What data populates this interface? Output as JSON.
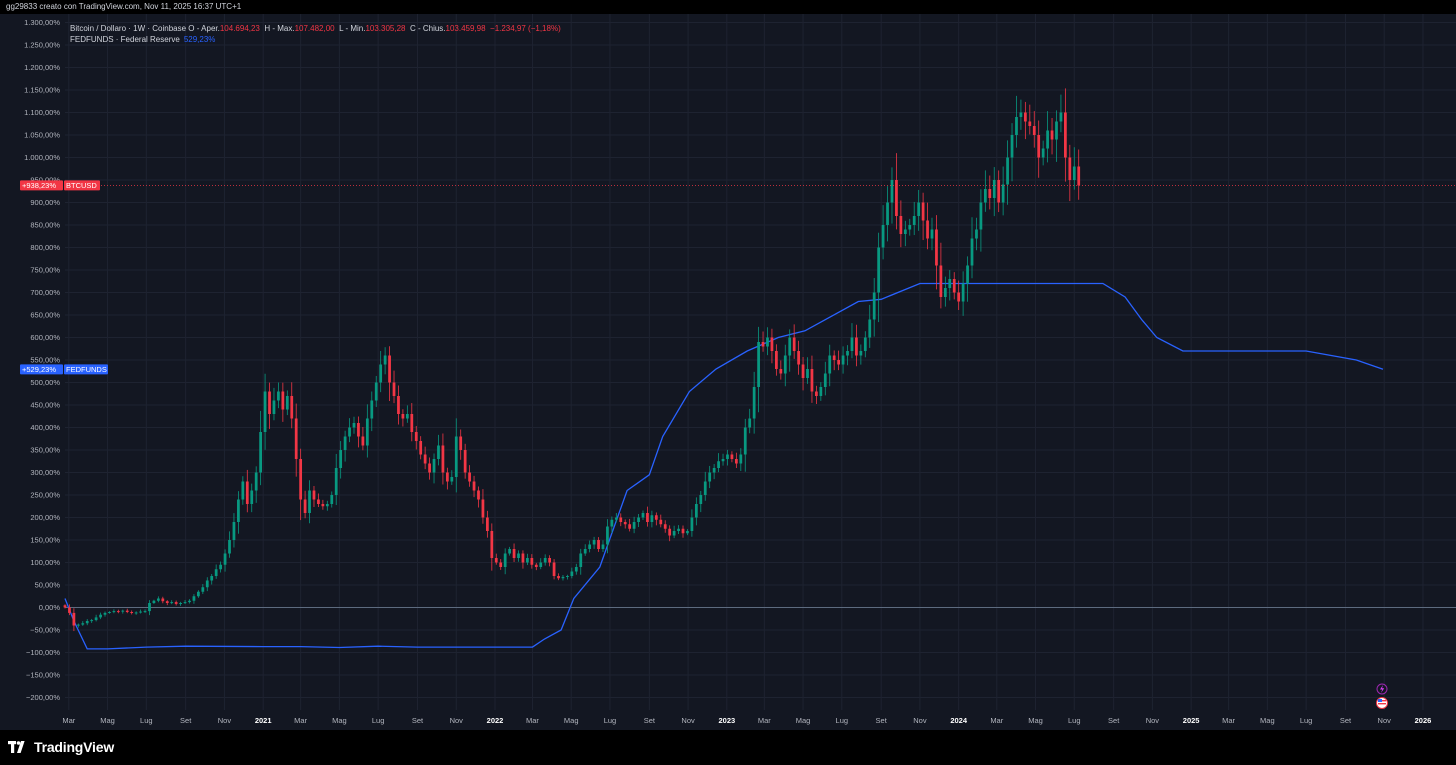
{
  "header": {
    "caption": "gg29833 creato con TradingView.com, Nov 11, 2025 16:37 UTC+1"
  },
  "legend": {
    "btc_prefix": "Bitcoin / Dollaro · 1W · Coinbase  O - Aper.",
    "btc_open": "104.694,23",
    "btc_high_label": "H - Max.",
    "btc_high": "107.482,00",
    "btc_low_label": "L - Min.",
    "btc_low": "103.305,28",
    "btc_close_label": "C - Chius.",
    "btc_close": "103.459,98",
    "btc_change": "−1.234,97 (−1,18%)",
    "fed_name": "FEDFUNDS · Federal Reserve",
    "fed_value": "529,23%"
  },
  "badges": {
    "btc_value": "+938,23%",
    "btc_symbol": "BTCUSD",
    "fed_value": "+529,23%",
    "fed_symbol": "FEDFUNDS"
  },
  "footer": {
    "brand": "TradingView"
  },
  "colors": {
    "background": "#131722",
    "up": "#089981",
    "down": "#f23645",
    "fed": "#2962ff",
    "grid": "#1e2331",
    "text": "#d1d4dc"
  },
  "chart_data": {
    "type": "line",
    "y_unit": "%",
    "ylim": [
      -210,
      1310
    ],
    "yticks": [
      "1.300,00%",
      "1.250,00%",
      "1.200,00%",
      "1.150,00%",
      "1.100,00%",
      "1.050,00%",
      "1.000,00%",
      "950,00%",
      "900,00%",
      "850,00%",
      "800,00%",
      "750,00%",
      "700,00%",
      "650,00%",
      "600,00%",
      "550,00%",
      "500,00%",
      "450,00%",
      "400,00%",
      "350,00%",
      "300,00%",
      "250,00%",
      "200,00%",
      "150,00%",
      "100,00%",
      "50,00%",
      "0,00%",
      "−50,00%",
      "−100,00%",
      "−150,00%",
      "−200,00%"
    ],
    "ytick_values": [
      1300,
      1250,
      1200,
      1150,
      1100,
      1050,
      1000,
      950,
      900,
      850,
      800,
      750,
      700,
      650,
      600,
      550,
      500,
      450,
      400,
      350,
      300,
      250,
      200,
      150,
      100,
      50,
      0,
      -50,
      -100,
      -150,
      -200
    ],
    "xlim": [
      "2020-02-24",
      "2026-02-22"
    ],
    "xticks": [
      {
        "date": "2020-03-01",
        "label": "Mar",
        "bold": false
      },
      {
        "date": "2020-05-01",
        "label": "Mag",
        "bold": false
      },
      {
        "date": "2020-07-01",
        "label": "Lug",
        "bold": false
      },
      {
        "date": "2020-09-01",
        "label": "Set",
        "bold": false
      },
      {
        "date": "2020-11-01",
        "label": "Nov",
        "bold": false
      },
      {
        "date": "2021-01-01",
        "label": "2021",
        "bold": true
      },
      {
        "date": "2021-03-01",
        "label": "Mar",
        "bold": false
      },
      {
        "date": "2021-05-01",
        "label": "Mag",
        "bold": false
      },
      {
        "date": "2021-07-01",
        "label": "Lug",
        "bold": false
      },
      {
        "date": "2021-09-01",
        "label": "Set",
        "bold": false
      },
      {
        "date": "2021-11-01",
        "label": "Nov",
        "bold": false
      },
      {
        "date": "2022-01-01",
        "label": "2022",
        "bold": true
      },
      {
        "date": "2022-03-01",
        "label": "Mar",
        "bold": false
      },
      {
        "date": "2022-05-01",
        "label": "Mag",
        "bold": false
      },
      {
        "date": "2022-07-01",
        "label": "Lug",
        "bold": false
      },
      {
        "date": "2022-09-01",
        "label": "Set",
        "bold": false
      },
      {
        "date": "2022-11-01",
        "label": "Nov",
        "bold": false
      },
      {
        "date": "2023-01-01",
        "label": "2023",
        "bold": true
      },
      {
        "date": "2023-03-01",
        "label": "Mar",
        "bold": false
      },
      {
        "date": "2023-05-01",
        "label": "Mag",
        "bold": false
      },
      {
        "date": "2023-07-01",
        "label": "Lug",
        "bold": false
      },
      {
        "date": "2023-09-01",
        "label": "Set",
        "bold": false
      },
      {
        "date": "2023-11-01",
        "label": "Nov",
        "bold": false
      },
      {
        "date": "2024-01-01",
        "label": "2024",
        "bold": true
      },
      {
        "date": "2024-03-01",
        "label": "Mar",
        "bold": false
      },
      {
        "date": "2024-05-01",
        "label": "Mag",
        "bold": false
      },
      {
        "date": "2024-07-01",
        "label": "Lug",
        "bold": false
      },
      {
        "date": "2024-09-01",
        "label": "Set",
        "bold": false
      },
      {
        "date": "2024-11-01",
        "label": "Nov",
        "bold": false
      },
      {
        "date": "2025-01-01",
        "label": "2025",
        "bold": true
      },
      {
        "date": "2025-03-01",
        "label": "Mar",
        "bold": false
      },
      {
        "date": "2025-05-01",
        "label": "Mag",
        "bold": false
      },
      {
        "date": "2025-07-01",
        "label": "Lug",
        "bold": false
      },
      {
        "date": "2025-09-01",
        "label": "Set",
        "bold": false
      },
      {
        "date": "2025-11-01",
        "label": "Nov",
        "bold": false
      },
      {
        "date": "2026-01-01",
        "label": "2026",
        "bold": true
      }
    ],
    "grid": true,
    "zero_line": 0,
    "series": [
      {
        "name": "BTCUSD",
        "render": "candlestick",
        "frequency": "weekly",
        "start": "2020-02-24",
        "close": [
          0,
          -12,
          -40,
          -38,
          -35,
          -30,
          -28,
          -22,
          -16,
          -12,
          -10,
          -8,
          -9,
          -7,
          -10,
          -12,
          -11,
          -9,
          -8,
          10,
          15,
          20,
          14,
          10,
          12,
          8,
          10,
          12,
          15,
          25,
          35,
          45,
          60,
          70,
          85,
          95,
          120,
          150,
          190,
          240,
          280,
          230,
          260,
          300,
          390,
          480,
          430,
          460,
          480,
          440,
          470,
          420,
          330,
          240,
          210,
          260,
          240,
          230,
          225,
          230,
          250,
          310,
          350,
          380,
          400,
          410,
          380,
          360,
          420,
          460,
          500,
          540,
          560,
          500,
          470,
          430,
          420,
          430,
          390,
          370,
          340,
          320,
          300,
          330,
          360,
          300,
          280,
          290,
          380,
          350,
          300,
          280,
          260,
          240,
          200,
          170,
          110,
          100,
          90,
          120,
          130,
          110,
          120,
          100,
          110,
          95,
          90,
          100,
          110,
          100,
          70,
          65,
          68,
          70,
          80,
          90,
          120,
          130,
          140,
          150,
          130,
          140,
          180,
          195,
          200,
          190,
          185,
          175,
          190,
          200,
          210,
          190,
          205,
          195,
          185,
          175,
          160,
          170,
          175,
          165,
          170,
          200,
          230,
          250,
          280,
          300,
          310,
          325,
          330,
          340,
          330,
          320,
          340,
          400,
          420,
          490,
          590,
          580,
          600,
          570,
          530,
          520,
          560,
          600,
          570,
          540,
          510,
          530,
          480,
          470,
          490,
          520,
          560,
          550,
          540,
          560,
          570,
          600,
          560,
          570,
          600,
          640,
          700,
          800,
          850,
          900,
          950,
          870,
          830,
          840,
          850,
          870,
          900,
          860,
          820,
          840,
          760,
          690,
          710,
          730,
          700,
          680,
          720,
          760,
          820,
          840,
          900,
          930,
          910,
          950,
          900,
          940,
          1000,
          1050,
          1090,
          1100,
          1080,
          1070,
          1050,
          1000,
          1020,
          1060,
          1040,
          1080,
          1100,
          1000,
          950,
          980,
          938
        ]
      },
      {
        "name": "FEDFUNDS",
        "render": "line",
        "points": [
          [
            "2020-02-24",
            20
          ],
          [
            "2020-03-09",
            -30
          ],
          [
            "2020-03-30",
            -92
          ],
          [
            "2020-05-01",
            -92
          ],
          [
            "2020-07-01",
            -88
          ],
          [
            "2020-09-01",
            -86
          ],
          [
            "2021-01-01",
            -87
          ],
          [
            "2021-03-01",
            -87
          ],
          [
            "2021-05-01",
            -89
          ],
          [
            "2021-07-01",
            -86
          ],
          [
            "2021-09-01",
            -88
          ],
          [
            "2021-11-01",
            -88
          ],
          [
            "2022-01-01",
            -88
          ],
          [
            "2022-03-01",
            -88
          ],
          [
            "2022-03-20",
            -70
          ],
          [
            "2022-04-15",
            -50
          ],
          [
            "2022-05-05",
            20
          ],
          [
            "2022-06-15",
            90
          ],
          [
            "2022-07-28",
            260
          ],
          [
            "2022-09-01",
            295
          ],
          [
            "2022-09-22",
            380
          ],
          [
            "2022-11-03",
            480
          ],
          [
            "2022-12-15",
            530
          ],
          [
            "2023-02-02",
            570
          ],
          [
            "2023-03-23",
            600
          ],
          [
            "2023-05-04",
            615
          ],
          [
            "2023-07-27",
            680
          ],
          [
            "2023-09-01",
            685
          ],
          [
            "2023-11-01",
            720
          ],
          [
            "2024-01-01",
            720
          ],
          [
            "2024-03-01",
            720
          ],
          [
            "2024-05-01",
            720
          ],
          [
            "2024-07-01",
            720
          ],
          [
            "2024-08-15",
            720
          ],
          [
            "2024-09-19",
            690
          ],
          [
            "2024-10-15",
            640
          ],
          [
            "2024-11-08",
            600
          ],
          [
            "2024-12-19",
            570
          ],
          [
            "2025-03-01",
            570
          ],
          [
            "2025-05-01",
            570
          ],
          [
            "2025-07-01",
            570
          ],
          [
            "2025-09-18",
            550
          ],
          [
            "2025-10-30",
            529.23
          ]
        ]
      }
    ]
  }
}
